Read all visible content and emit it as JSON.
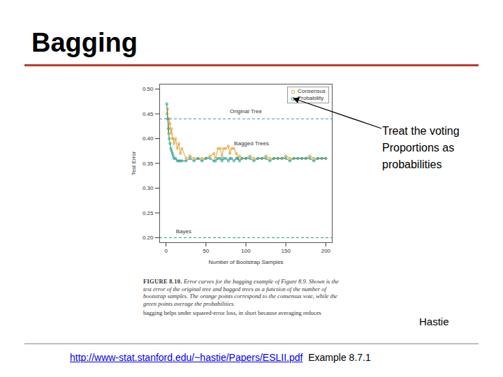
{
  "chart_data": {
    "type": "line",
    "title": "Bagging",
    "x_label": "Number of Bootstrap Samples",
    "y_label": "Test Error",
    "xlim": [
      -8,
      208
    ],
    "xticks": [
      0,
      50,
      100,
      150,
      200
    ],
    "ylim": [
      0.19,
      0.51
    ],
    "yticks": [
      {
        "value": 0.2,
        "label": "0.20"
      },
      {
        "value": 0.25,
        "label": "0.25"
      },
      {
        "value": 0.3,
        "label": "0.30"
      },
      {
        "value": 0.35,
        "label": "0.35"
      },
      {
        "value": 0.4,
        "label": "0.40"
      },
      {
        "value": 0.45,
        "label": "0.45"
      },
      {
        "value": 0.5,
        "label": "0.50"
      }
    ],
    "grid": false,
    "legend": "top-right",
    "x": [
      1,
      2,
      3,
      4,
      5,
      6,
      7,
      8,
      9,
      10,
      12,
      14,
      16,
      18,
      20,
      25,
      30,
      35,
      40,
      45,
      50,
      55,
      60,
      62,
      65,
      68,
      70,
      72,
      75,
      78,
      80,
      82,
      85,
      88,
      90,
      92,
      95,
      100,
      105,
      110,
      115,
      120,
      125,
      130,
      135,
      140,
      145,
      150,
      155,
      160,
      165,
      170,
      175,
      180,
      185,
      190,
      195,
      200
    ],
    "series": [
      {
        "name": "Consensus",
        "color": "#e0a030",
        "marker": "circle",
        "line_style": "solid",
        "values": [
          0.45,
          0.46,
          0.41,
          0.44,
          0.43,
          0.41,
          0.42,
          0.4,
          0.4,
          0.39,
          0.4,
          0.38,
          0.39,
          0.37,
          0.38,
          0.36,
          0.365,
          0.36,
          0.36,
          0.36,
          0.36,
          0.365,
          0.37,
          0.36,
          0.38,
          0.38,
          0.365,
          0.38,
          0.38,
          0.385,
          0.37,
          0.38,
          0.38,
          0.37,
          0.36,
          0.365,
          0.36,
          0.36,
          0.365,
          0.36,
          0.36,
          0.36,
          0.365,
          0.36,
          0.36,
          0.36,
          0.36,
          0.365,
          0.36,
          0.36,
          0.36,
          0.36,
          0.36,
          0.365,
          0.36,
          0.36,
          0.36,
          0.36
        ]
      },
      {
        "name": "Probability",
        "color": "#1f9a8a",
        "marker": "circle",
        "line_style": "solid",
        "values": [
          0.47,
          0.44,
          0.42,
          0.4,
          0.39,
          0.38,
          0.375,
          0.37,
          0.365,
          0.36,
          0.36,
          0.355,
          0.355,
          0.355,
          0.355,
          0.355,
          0.36,
          0.355,
          0.36,
          0.355,
          0.36,
          0.36,
          0.355,
          0.355,
          0.36,
          0.36,
          0.355,
          0.36,
          0.36,
          0.355,
          0.36,
          0.36,
          0.355,
          0.36,
          0.36,
          0.355,
          0.36,
          0.36,
          0.36,
          0.355,
          0.36,
          0.36,
          0.36,
          0.355,
          0.36,
          0.36,
          0.36,
          0.36,
          0.355,
          0.36,
          0.36,
          0.36,
          0.36,
          0.36,
          0.355,
          0.36,
          0.36,
          0.36
        ]
      }
    ],
    "reference_lines": [
      {
        "value": 0.44,
        "color": "#3f8fb5",
        "line_style": "dashed"
      },
      {
        "value": 0.2,
        "color": "#1f9a8a",
        "line_style": "dashed"
      }
    ],
    "annotations": [
      {
        "text": "Original Tree",
        "x": 100,
        "y": 0.455
      },
      {
        "text": "Bagged Trees",
        "x": 107,
        "y": 0.39
      },
      {
        "text": "Bayes",
        "x": 22,
        "y": 0.212
      }
    ],
    "callout": [
      "Treat the voting",
      "Proportions as",
      "probabilities"
    ],
    "figure_label": "FIGURE 8.10.",
    "figure_caption": "Error curves for the bagging example of Figure 8.9. Shown is the test error of the original tree and bagged trees as a function of the number of bootstrap samples. The orange points correspond to the consensus vote, while the green points average the probabilities.",
    "caption_next_line": "bagging helps under squared-error loss, in short because averaging reduces",
    "credit": "Hastie",
    "source_url": "http://www-stat.stanford.edu/~hastie/Papers/ESLII.pdf",
    "source_note": "Example 8.7.1"
  }
}
